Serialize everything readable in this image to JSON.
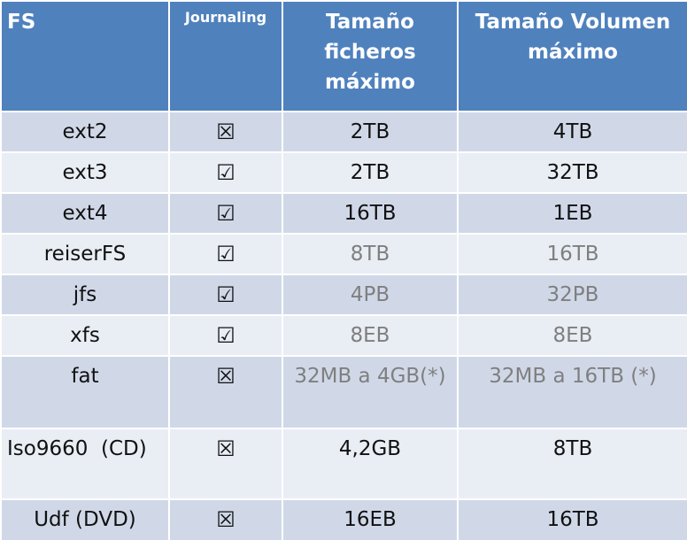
{
  "table": {
    "header": [
      "FS",
      "Journaling",
      "Tamaño ficheros máximo",
      "Tamaño Volumen máximo"
    ],
    "rows": [
      [
        "ext2",
        "☒",
        "2TB",
        "4TB"
      ],
      [
        "ext3",
        "☑",
        "2TB",
        "32TB"
      ],
      [
        "ext4",
        "☑",
        "16TB",
        "1EB"
      ],
      [
        "reiserFS",
        "☑",
        "8TB",
        "16TB"
      ],
      [
        "jfs",
        "☑",
        "4PB",
        "32PB"
      ],
      [
        "xfs",
        "☑",
        "8EB",
        "8EB"
      ],
      [
        "fat",
        "☒",
        "32MB a 4GB(*)",
        "32MB a 16TB (*)"
      ],
      [
        "Iso9660  (CD)",
        "☒",
        "4,2GB",
        "8TB"
      ],
      [
        "Udf (DVD)",
        "☒",
        "16EB",
        "16TB"
      ]
    ]
  }
}
